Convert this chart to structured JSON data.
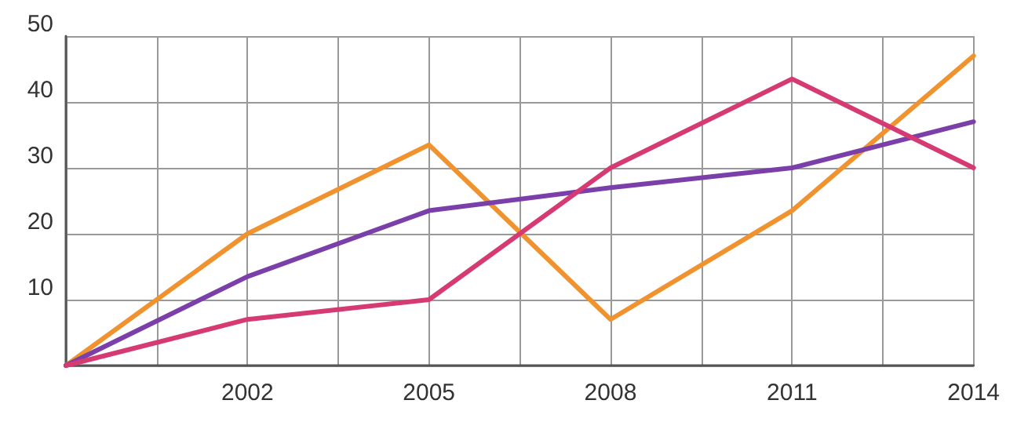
{
  "chart_data": {
    "type": "line",
    "x": [
      1999,
      2002,
      2005,
      2008,
      2011,
      2014
    ],
    "series": [
      {
        "color": "#f0922e",
        "values": [
          0,
          20,
          33.5,
          7,
          23.5,
          47
        ]
      },
      {
        "color": "#7a3fa8",
        "values": [
          0,
          13.5,
          23.5,
          27,
          30,
          37
        ]
      },
      {
        "color": "#d63a72",
        "values": [
          0,
          7,
          10,
          30,
          43.5,
          30
        ]
      }
    ],
    "xlim": [
      1999,
      2014
    ],
    "xticks": [
      {
        "value": 1999,
        "label": null
      },
      {
        "value": 2000.5,
        "label": null
      },
      2002,
      {
        "value": 2003.5,
        "label": null
      },
      2005,
      {
        "value": 2006.5,
        "label": null
      },
      2008,
      {
        "value": 2009.5,
        "label": null
      },
      2011,
      {
        "value": 2012.5,
        "label": null
      },
      2014
    ],
    "ylim": [
      0,
      50
    ],
    "yticks": [
      {
        "value": 0,
        "label": null
      },
      10,
      20,
      30,
      40,
      50
    ],
    "grid": true,
    "marker": "none",
    "line_style": "solid"
  }
}
